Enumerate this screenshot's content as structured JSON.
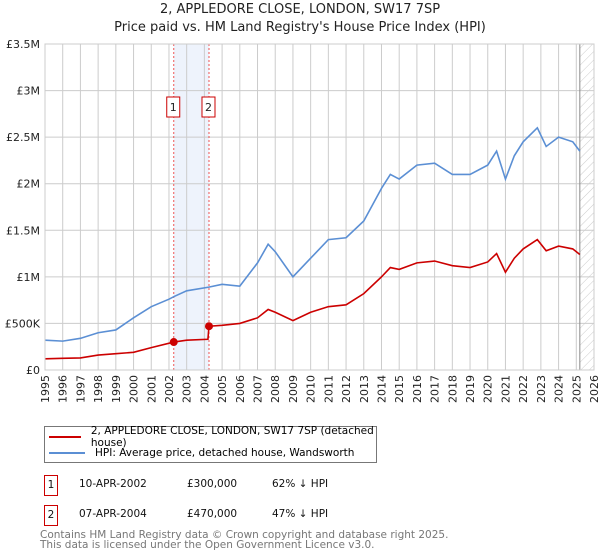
{
  "chart_data": {
    "type": "line",
    "title": "2, APPLEDORE CLOSE, LONDON, SW17 7SP",
    "subtitle": "Price paid vs. HM Land Registry's House Price Index (HPI)",
    "xlim": [
      1995,
      2026
    ],
    "ylim": [
      0,
      3500000
    ],
    "x_ticks": [
      "1995",
      "1996",
      "1997",
      "1998",
      "1999",
      "2000",
      "2001",
      "2002",
      "2003",
      "2004",
      "2005",
      "2006",
      "2007",
      "2008",
      "2009",
      "2010",
      "2011",
      "2012",
      "2013",
      "2014",
      "2015",
      "2016",
      "2017",
      "2018",
      "2019",
      "2020",
      "2021",
      "2022",
      "2023",
      "2024",
      "2025",
      "2026"
    ],
    "y_ticks": [
      {
        "v": 0,
        "label": "£0"
      },
      {
        "v": 500000,
        "label": "£500K"
      },
      {
        "v": 1000000,
        "label": "£1M"
      },
      {
        "v": 1500000,
        "label": "£1.5M"
      },
      {
        "v": 2000000,
        "label": "£2M"
      },
      {
        "v": 2500000,
        "label": "£2.5M"
      },
      {
        "v": 3000000,
        "label": "£3M"
      },
      {
        "v": 3500000,
        "label": "£3.5M"
      }
    ],
    "grid": true,
    "series": [
      {
        "name": "2, APPLEDORE CLOSE, LONDON, SW17 7SP (detached house)",
        "color": "#cc0000",
        "x": [
          1995,
          1996,
          1997,
          1998,
          1999,
          2000,
          2001,
          2002.27,
          2003,
          2004.2,
          2004.26,
          2005,
          2006,
          2007,
          2007.6,
          2008,
          2009,
          2010,
          2011,
          2012,
          2013,
          2014,
          2014.5,
          2015,
          2016,
          2017,
          2018,
          2019,
          2020,
          2020.5,
          2021,
          2021.5,
          2022,
          2022.8,
          2023.3,
          2024,
          2024.8,
          2025.2
        ],
        "y": [
          120000,
          125000,
          130000,
          160000,
          175000,
          190000,
          240000,
          300000,
          320000,
          330000,
          470000,
          480000,
          500000,
          560000,
          650000,
          620000,
          530000,
          620000,
          680000,
          700000,
          820000,
          1000000,
          1100000,
          1080000,
          1150000,
          1170000,
          1120000,
          1100000,
          1160000,
          1250000,
          1050000,
          1200000,
          1300000,
          1400000,
          1280000,
          1330000,
          1300000,
          1240000
        ]
      },
      {
        "name": "HPI: Average price, detached house, Wandsworth",
        "color": "#5b8fd4",
        "x": [
          1995,
          1996,
          1997,
          1998,
          1999,
          2000,
          2001,
          2002,
          2002.3,
          2003,
          2004.25,
          2005,
          2006,
          2007,
          2007.6,
          2008,
          2009,
          2010,
          2010.5,
          2011,
          2012,
          2013,
          2014,
          2014.5,
          2015,
          2016,
          2017,
          2018,
          2019,
          2020,
          2020.5,
          2021,
          2021.5,
          2022,
          2022.8,
          2023.3,
          2024,
          2024.8,
          2025.2
        ],
        "y": [
          320000,
          310000,
          340000,
          400000,
          430000,
          560000,
          680000,
          760000,
          790000,
          850000,
          890000,
          920000,
          900000,
          1150000,
          1350000,
          1270000,
          1000000,
          1200000,
          1300000,
          1400000,
          1420000,
          1600000,
          1950000,
          2100000,
          2050000,
          2200000,
          2220000,
          2100000,
          2100000,
          2200000,
          2350000,
          2050000,
          2300000,
          2450000,
          2600000,
          2400000,
          2500000,
          2450000,
          2350000
        ]
      }
    ],
    "sales": [
      {
        "n": "1",
        "x": 2002.27,
        "y": 300000
      },
      {
        "n": "2",
        "x": 2004.26,
        "y": 470000
      }
    ],
    "forecast_from": 2025.2
  },
  "legend": {
    "items": [
      "2, APPLEDORE CLOSE, LONDON, SW17 7SP (detached house)",
      "HPI: Average price, detached house, Wandsworth"
    ]
  },
  "table": [
    {
      "n": "1",
      "date": "10-APR-2002",
      "price": "£300,000",
      "hpi": "62% ↓ HPI"
    },
    {
      "n": "2",
      "date": "07-APR-2004",
      "price": "£470,000",
      "hpi": "47% ↓ HPI"
    }
  ],
  "footer": [
    "Contains HM Land Registry data © Crown copyright and database right 2025.",
    "This data is licensed under the Open Government Licence v3.0."
  ]
}
